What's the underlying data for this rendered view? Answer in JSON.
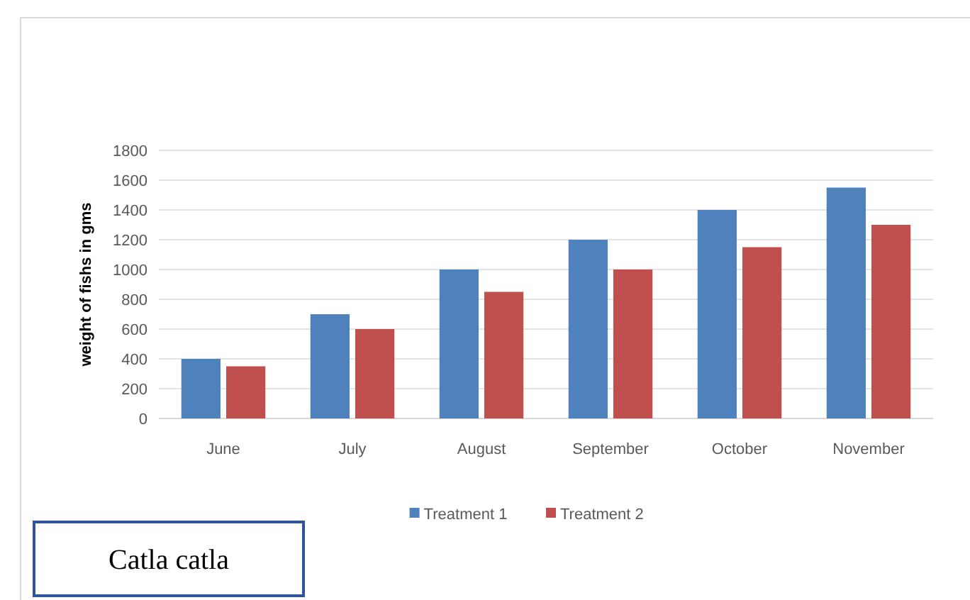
{
  "chart_data": {
    "type": "bar",
    "ylabel": "weight of fishs in gms",
    "categories": [
      "June",
      "July",
      "August",
      "September",
      "October",
      "November"
    ],
    "series": [
      {
        "name": "Treatment 1",
        "color": "#4f81bd",
        "values": [
          400,
          700,
          1000,
          1200,
          1400,
          1550
        ]
      },
      {
        "name": "Treatment 2",
        "color": "#c0504d",
        "values": [
          350,
          600,
          850,
          1000,
          1150,
          1300
        ]
      }
    ],
    "ylim": [
      0,
      1800
    ],
    "yticks": [
      0,
      200,
      400,
      600,
      800,
      1000,
      1200,
      1400,
      1600,
      1800
    ],
    "grid": "y",
    "legend": "bottom",
    "annotations": [
      "Catla catla"
    ]
  }
}
